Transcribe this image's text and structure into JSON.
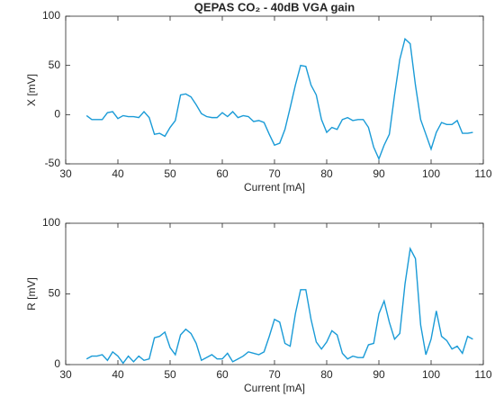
{
  "chart_data": [
    {
      "type": "line",
      "title": "QEPAS CO₂ - 40dB VGA gain",
      "x_label": "Current [mA]",
      "y_label": "X [mV]",
      "xlim": [
        30,
        110
      ],
      "xticks": [
        30,
        40,
        50,
        60,
        70,
        80,
        90,
        100,
        110
      ],
      "ylim": [
        -50,
        100
      ],
      "yticks": [
        -50,
        0,
        50,
        100
      ],
      "series": [
        {
          "name": "X",
          "color": "#1a9bd7",
          "x": [
            34,
            35,
            36,
            37,
            38,
            39,
            40,
            41,
            42,
            43,
            44,
            45,
            46,
            47,
            48,
            49,
            50,
            51,
            52,
            53,
            54,
            55,
            56,
            57,
            58,
            59,
            60,
            61,
            62,
            63,
            64,
            65,
            66,
            67,
            68,
            69,
            70,
            71,
            72,
            73,
            74,
            75,
            76,
            77,
            78,
            79,
            80,
            81,
            82,
            83,
            84,
            85,
            86,
            87,
            88,
            89,
            90,
            91,
            92,
            93,
            94,
            95,
            96,
            97,
            98,
            99,
            100,
            101,
            102,
            103,
            104,
            105,
            106,
            107,
            108
          ],
          "values": [
            -1,
            -5,
            -5,
            -5,
            2,
            3,
            -4,
            -1,
            -2,
            -2,
            -3,
            3,
            -3,
            -20,
            -19,
            -22,
            -13,
            -6,
            20,
            21,
            18,
            10,
            1,
            -2,
            -3,
            -3,
            2,
            -2,
            3,
            -3,
            -1,
            -2,
            -7,
            -6,
            -8,
            -20,
            -31,
            -29,
            -15,
            7,
            30,
            50,
            49,
            30,
            20,
            -5,
            -18,
            -13,
            -15,
            -5,
            -3,
            -6,
            -5,
            -5,
            -13,
            -33,
            -45,
            -31,
            -20,
            20,
            56,
            77,
            72,
            30,
            -5,
            -20,
            -35,
            -18,
            -8,
            -10,
            -10,
            -6,
            -19,
            -19,
            -18
          ]
        }
      ]
    },
    {
      "type": "line",
      "x_label": "Current [mA]",
      "y_label": "R [mV]",
      "xlim": [
        30,
        110
      ],
      "xticks": [
        30,
        40,
        50,
        60,
        70,
        80,
        90,
        100,
        110
      ],
      "ylim": [
        0,
        100
      ],
      "yticks": [
        0,
        50,
        100
      ],
      "series": [
        {
          "name": "R",
          "color": "#1a9bd7",
          "x": [
            34,
            35,
            36,
            37,
            38,
            39,
            40,
            41,
            42,
            43,
            44,
            45,
            46,
            47,
            48,
            49,
            50,
            51,
            52,
            53,
            54,
            55,
            56,
            57,
            58,
            59,
            60,
            61,
            62,
            63,
            64,
            65,
            66,
            67,
            68,
            69,
            70,
            71,
            72,
            73,
            74,
            75,
            76,
            77,
            78,
            79,
            80,
            81,
            82,
            83,
            84,
            85,
            86,
            87,
            88,
            89,
            90,
            91,
            92,
            93,
            94,
            95,
            96,
            97,
            98,
            99,
            100,
            101,
            102,
            103,
            104,
            105,
            106,
            107,
            108
          ],
          "values": [
            4,
            6,
            6,
            7,
            3,
            9,
            6,
            1,
            6,
            2,
            6,
            3,
            4,
            19,
            20,
            23,
            12,
            7,
            21,
            25,
            22,
            15,
            3,
            5,
            7,
            4,
            4,
            8,
            2,
            4,
            6,
            9,
            8,
            7,
            9,
            20,
            32,
            30,
            15,
            13,
            36,
            53,
            53,
            32,
            16,
            11,
            16,
            24,
            21,
            8,
            4,
            6,
            5,
            5,
            14,
            15,
            36,
            45,
            30,
            18,
            22,
            57,
            82,
            75,
            28,
            7,
            18,
            38,
            20,
            17,
            11,
            13,
            8,
            20,
            18
          ]
        }
      ]
    }
  ]
}
